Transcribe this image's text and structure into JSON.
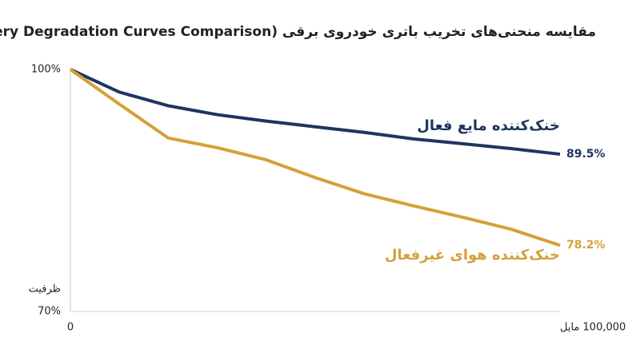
{
  "chart_data": {
    "type": "line",
    "title": "مقایسه منحنی‌های تخریب باتری خودروی برقی (EV Battery Degradation Curves Comparison)",
    "y_label": "ظرفیت",
    "x": [
      0,
      10000,
      20000,
      30000,
      40000,
      50000,
      60000,
      70000,
      80000,
      90000,
      100000
    ],
    "xlim": [
      0,
      100000
    ],
    "xticks": [
      0,
      {
        "value": 100000,
        "label": "100,000 مایل"
      }
    ],
    "ylim": [
      70,
      100
    ],
    "yticks": [
      {
        "value": 70,
        "label": "70%"
      },
      {
        "value": 100,
        "label": "100%"
      }
    ],
    "grid": false,
    "series": [
      {
        "name": "خنک‌کننده مایع فعال",
        "color": "#1f3461",
        "values": [
          100,
          97.2,
          95.5,
          94.4,
          93.6,
          92.9,
          92.2,
          91.4,
          90.8,
          90.2,
          89.5
        ],
        "value_labels": [
          null,
          null,
          null,
          null,
          null,
          null,
          null,
          null,
          null,
          null,
          "89.5%"
        ]
      },
      {
        "name": "خنک‌کننده هوای غیرفعال",
        "color": "#d4a03a",
        "values": [
          100,
          95.7,
          91.5,
          90.3,
          88.8,
          86.6,
          84.6,
          83.1,
          81.7,
          80.2,
          78.2
        ],
        "value_labels": [
          null,
          null,
          null,
          null,
          null,
          null,
          null,
          null,
          null,
          null,
          "78.2%"
        ]
      }
    ]
  }
}
